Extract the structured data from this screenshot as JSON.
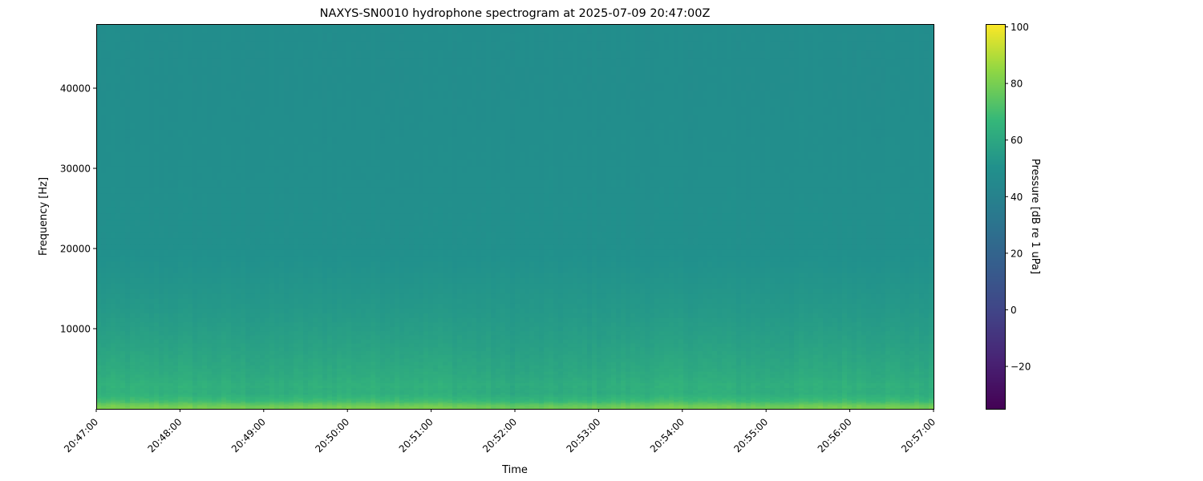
{
  "chart_data": {
    "type": "heatmap",
    "title": "NAXYS-SN0010 hydrophone spectrogram at 2025-07-09 20:47:00Z",
    "xlabel": "Time",
    "ylabel": "Frequency [Hz]",
    "colorbar_label": "Pressure [dB re 1 uPa]",
    "colormap": "viridis",
    "x_ticks": [
      "20:47:00",
      "20:48:00",
      "20:49:00",
      "20:50:00",
      "20:51:00",
      "20:52:00",
      "20:53:00",
      "20:54:00",
      "20:55:00",
      "20:56:00",
      "20:57:00"
    ],
    "x_range": [
      "20:47:00",
      "20:57:00"
    ],
    "y_ticks": [
      10000,
      20000,
      30000,
      40000
    ],
    "y_range": [
      0,
      48000
    ],
    "colorbar_ticks": [
      -20,
      0,
      20,
      40,
      60,
      80,
      100
    ],
    "color_range": [
      -35,
      101
    ],
    "grid": false,
    "frequency_profile": {
      "frequency_hz": [
        0,
        500,
        1000,
        2000,
        3000,
        4000,
        6000,
        8000,
        12000,
        16000,
        20000,
        30000,
        40000,
        48000
      ],
      "level_db": [
        80,
        76,
        68,
        62,
        63,
        61,
        59,
        57,
        54,
        52,
        50,
        49,
        48,
        48
      ]
    },
    "time_level_offset_db": {
      "time": [
        "20:47:00",
        "20:48:00",
        "20:49:00",
        "20:50:00",
        "20:51:00",
        "20:52:00",
        "20:53:00",
        "20:54:00",
        "20:55:00",
        "20:56:00",
        "20:57:00"
      ],
      "offset_db": [
        1,
        1,
        0,
        1,
        1,
        -1,
        0,
        1,
        0,
        1,
        0
      ]
    }
  }
}
